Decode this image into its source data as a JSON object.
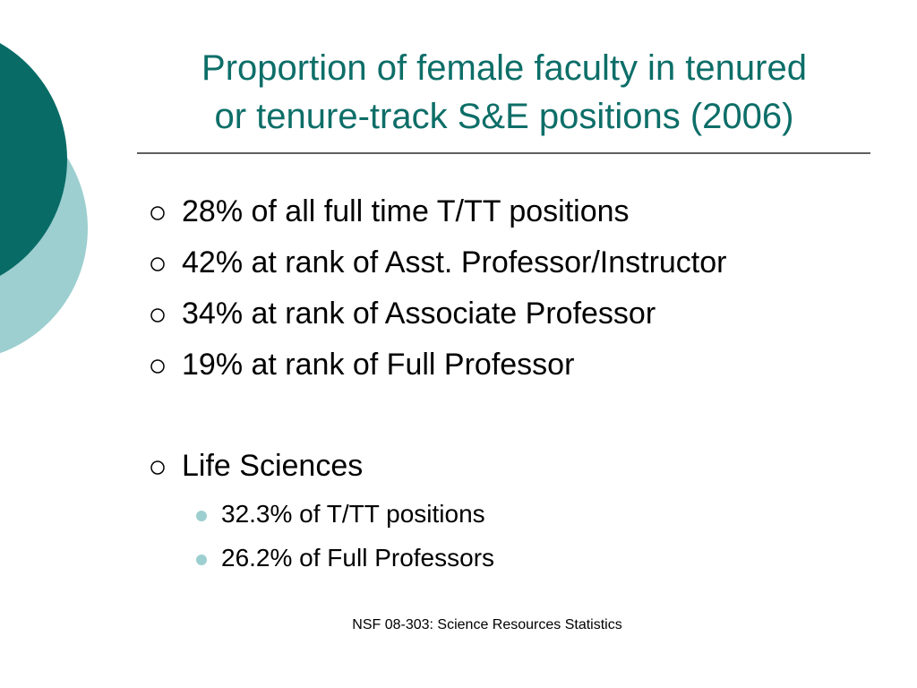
{
  "title": {
    "lines": [
      "Proportion of female faculty in tenured",
      "or tenure-track S&E positions (2006)"
    ]
  },
  "bullets": [
    "28% of all full time T/TT positions",
    "42% at rank of Asst. Professor/Instructor",
    "34% at rank of Associate Professor",
    "19% at rank of Full Professor",
    "Life Sciences"
  ],
  "sub_bullets": [
    "32.3% of T/TT positions",
    "26.2% of Full Professors"
  ],
  "footer": "NSF 08-303: Science Resources Statistics"
}
